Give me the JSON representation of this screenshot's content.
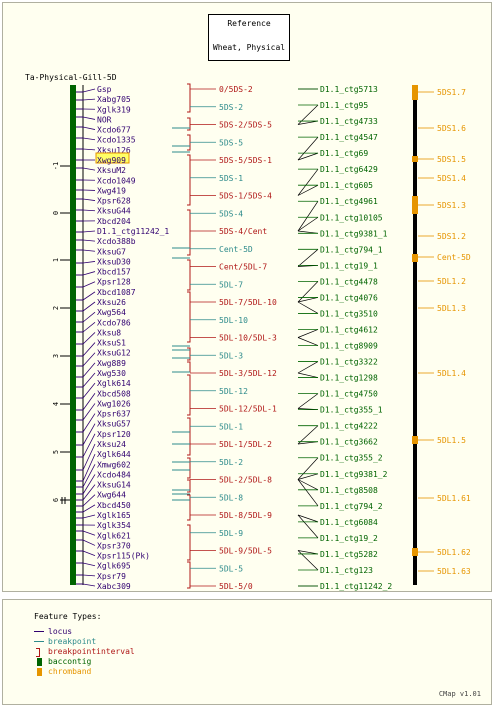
{
  "reference": {
    "title": "Reference",
    "subtitle": "Wheat, Physical"
  },
  "map": {
    "name": "Ta-Physical-Gill-5D",
    "colors": {
      "locus": "#300070",
      "breakpoint": "#2e8b8b",
      "interval": "#b01818",
      "contig": "#006400",
      "chromband": "#e69500",
      "axis": "#000000"
    },
    "axis_ticks": [
      "-1",
      "0",
      "1",
      "2",
      "3",
      "4",
      "5",
      "6"
    ],
    "highlighted_locus": "Xwg909",
    "loci": [
      "Gsp",
      "Xabg705",
      "Xglk319",
      "NOR",
      "Xcdo677",
      "Xcdo1335",
      "Xksu126",
      "Xwg909",
      "XksuM2",
      "Xcdo1049",
      "Xwg419",
      "Xpsr628",
      "XksuG44",
      "Xbcd204",
      "D1.1_ctg11242_1",
      "Xcdo388b",
      "XksuG7",
      "XksuD30",
      "Xbcd157",
      "Xpsr128",
      "Xbcd1087",
      "Xksu26",
      "Xwg564",
      "Xcdo786",
      "Xksu8",
      "XksuS1",
      "XksuG12",
      "Xwg889",
      "Xwg530",
      "Xglk614",
      "Xbcd508",
      "Xwg1026",
      "Xpsr637",
      "XksuG57",
      "Xpsr120",
      "Xksu24",
      "Xglk644",
      "Xmwg602",
      "Xcdo484",
      "XksuG14",
      "Xwg644",
      "Xbcd450",
      "Xglk165",
      "Xglk354",
      "Xglk621",
      "Xpsr370",
      "Xpsr115(Pk)",
      "Xglk695",
      "Xpsr79",
      "Xabc309"
    ],
    "intervals": [
      {
        "label": "0/5DS-2",
        "kind": "interval"
      },
      {
        "label": "5DS-2",
        "kind": "breakpoint"
      },
      {
        "label": "5DS-2/5DS-5",
        "kind": "interval"
      },
      {
        "label": "5DS-5",
        "kind": "breakpoint"
      },
      {
        "label": "5DS-5/5DS-1",
        "kind": "interval"
      },
      {
        "label": "5DS-1",
        "kind": "breakpoint"
      },
      {
        "label": "5DS-1/5DS-4",
        "kind": "interval"
      },
      {
        "label": "5DS-4",
        "kind": "breakpoint"
      },
      {
        "label": "5DS-4/Cent",
        "kind": "interval"
      },
      {
        "label": "Cent-5D",
        "kind": "breakpoint"
      },
      {
        "label": "Cent/5DL-7",
        "kind": "interval"
      },
      {
        "label": "5DL-7",
        "kind": "breakpoint"
      },
      {
        "label": "5DL-7/5DL-10",
        "kind": "interval"
      },
      {
        "label": "5DL-10",
        "kind": "breakpoint"
      },
      {
        "label": "5DL-10/5DL-3",
        "kind": "interval"
      },
      {
        "label": "5DL-3",
        "kind": "breakpoint"
      },
      {
        "label": "5DL-3/5DL-12",
        "kind": "interval"
      },
      {
        "label": "5DL-12",
        "kind": "breakpoint"
      },
      {
        "label": "5DL-12/5DL-1",
        "kind": "interval"
      },
      {
        "label": "5DL-1",
        "kind": "breakpoint"
      },
      {
        "label": "5DL-1/5DL-2",
        "kind": "interval"
      },
      {
        "label": "5DL-2",
        "kind": "breakpoint"
      },
      {
        "label": "5DL-2/5DL-8",
        "kind": "interval"
      },
      {
        "label": "5DL-8",
        "kind": "breakpoint"
      },
      {
        "label": "5DL-8/5DL-9",
        "kind": "interval"
      },
      {
        "label": "5DL-9",
        "kind": "breakpoint"
      },
      {
        "label": "5DL-9/5DL-5",
        "kind": "interval"
      },
      {
        "label": "5DL-5",
        "kind": "breakpoint"
      },
      {
        "label": "5DL-5/0",
        "kind": "interval"
      }
    ],
    "contigs": [
      "D1.1_ctg5713",
      "D1.1_ctg95",
      "D1.1_ctg4733",
      "D1.1_ctg4547",
      "D1.1_ctg69",
      "D1.1_ctg6429",
      "D1.1_ctg605",
      "D1.1_ctg4961",
      "D1.1_ctg10105",
      "D1.1_ctg9381_1",
      "D1.1_ctg794_1",
      "D1.1_ctg19_1",
      "D1.1_ctg4478",
      "D1.1_ctg4076",
      "D1.1_ctg3510",
      "D1.1_ctg4612",
      "D1.1_ctg8909",
      "D1.1_ctg3322",
      "D1.1_ctg1298",
      "D1.1_ctg4750",
      "D1.1_ctg355_1",
      "D1.1_ctg4222",
      "D1.1_ctg3662",
      "D1.1_ctg355_2",
      "D1.1_ctg9381_2",
      "D1.1_ctg8508",
      "D1.1_ctg794_2",
      "D1.1_ctg6084",
      "D1.1_ctg19_2",
      "D1.1_ctg5282",
      "D1.1_ctg123",
      "D1.1_ctg11242_2"
    ],
    "chromband_labels": [
      "5DS1.7",
      "5DS1.6",
      "5DS1.5",
      "5DS1.4",
      "5DS1.3",
      "5DS1.2",
      "Cent-5D",
      "5DL1.2",
      "5DL1.3",
      "5DL1.4",
      "5DL1.5",
      "5DL1.61",
      "5DL1.62",
      "5DL1.63"
    ]
  },
  "legend": {
    "title": "Feature Types:",
    "items": [
      {
        "label": "locus",
        "kind": "line",
        "color": "#300070"
      },
      {
        "label": "breakpoint",
        "kind": "line",
        "color": "#2e8b8b"
      },
      {
        "label": "breakpointinterval",
        "kind": "bracket",
        "color": "#b01818"
      },
      {
        "label": "baccontig",
        "kind": "box",
        "color": "#006400"
      },
      {
        "label": "chromband",
        "kind": "box",
        "color": "#e69500"
      }
    ],
    "version": "CMap v1.01"
  }
}
